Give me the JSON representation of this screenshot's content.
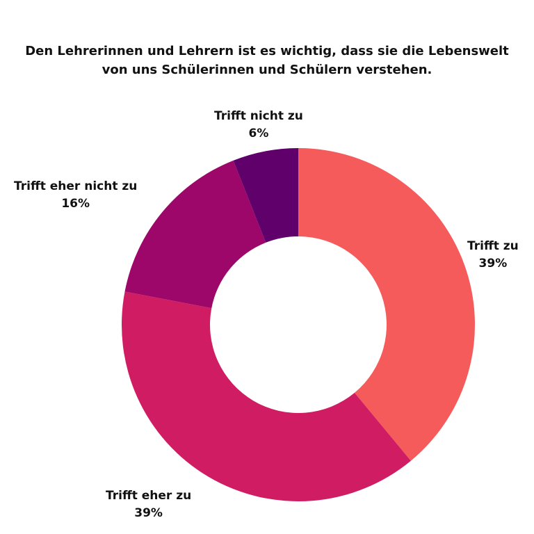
{
  "chart_data": {
    "type": "pie",
    "title_lines": [
      "Den Lehrerinnen und Lehrern ist es wichtig, dass sie die Lebenswelt",
      "von uns Schülerinnen und Schülern verstehen."
    ],
    "slices": [
      {
        "label": "Trifft zu",
        "value": 39,
        "value_label": "39%",
        "color": "#f55b5b"
      },
      {
        "label": "Trifft eher zu",
        "value": 39,
        "value_label": "39%",
        "color": "#d01c63"
      },
      {
        "label": "Trifft eher nicht zu",
        "value": 16,
        "value_label": "16%",
        "color": "#9c0769"
      },
      {
        "label": "Trifft nicht zu",
        "value": 6,
        "value_label": "6%",
        "color": "#60006b"
      }
    ],
    "legend": "none"
  }
}
